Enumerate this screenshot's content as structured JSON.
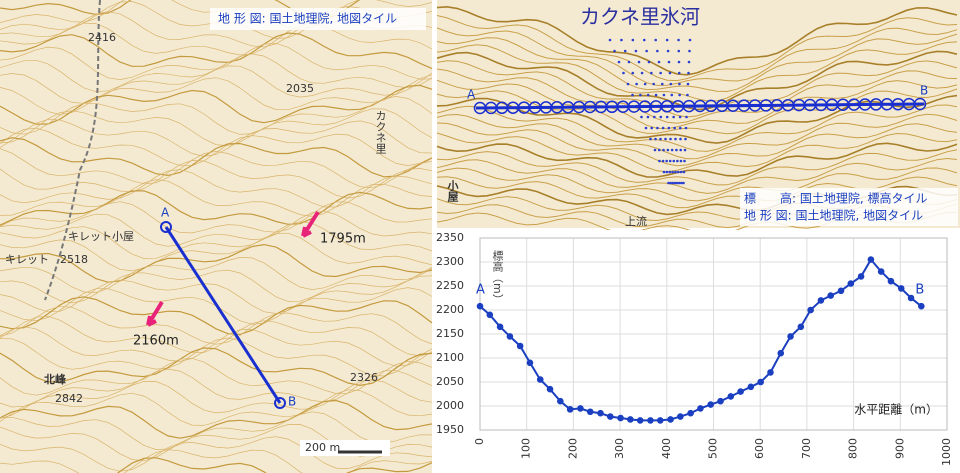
{
  "left_map": {
    "credit": "地 形 図: 国土地理院, 地図タイル",
    "point_a": "A",
    "point_b": "B",
    "labels": [
      "キレット小屋",
      "キレット",
      "2518",
      "2416",
      "2035",
      "カクネ里",
      "1795m",
      "2160m",
      "北峰",
      "2842",
      "2326"
    ],
    "scale": "200 m"
  },
  "profile_map": {
    "title": "カクネ里氷河",
    "point_a": "A",
    "point_b": "B",
    "credit_elevation": "標　　高: 国土地理院, 標高タイル",
    "credit_map": "地 形 図: 国土地理院, 地図タイル",
    "labels": [
      "上流",
      "小屋"
    ]
  },
  "chart_data": {
    "type": "line",
    "ylabel": "標高（m）",
    "xlabel": "水平距離（m）",
    "annotations": [
      "A",
      "B"
    ],
    "color": "#1a3fc0",
    "xlim": [
      0,
      1000
    ],
    "xticks": [
      0,
      100,
      200,
      300,
      400,
      500,
      600,
      700,
      800,
      900,
      1000
    ],
    "ylim": [
      1950,
      2350
    ],
    "yticks": [
      1950,
      2000,
      2050,
      2100,
      2150,
      2200,
      2250,
      2300,
      2350
    ],
    "grid": true,
    "x": [
      0,
      21,
      43,
      64,
      86,
      107,
      129,
      150,
      172,
      193,
      215,
      236,
      258,
      279,
      301,
      322,
      343,
      365,
      386,
      408,
      429,
      451,
      472,
      494,
      515,
      537,
      558,
      580,
      601,
      622,
      644,
      665,
      687,
      708,
      730,
      751,
      773,
      794,
      816,
      837,
      859,
      880,
      902,
      923,
      945
    ],
    "values": [
      2208,
      2190,
      2165,
      2145,
      2125,
      2090,
      2055,
      2035,
      2010,
      1993,
      1995,
      1988,
      1985,
      1978,
      1975,
      1972,
      1970,
      1970,
      1970,
      1972,
      1978,
      1985,
      1995,
      2003,
      2010,
      2020,
      2030,
      2040,
      2050,
      2070,
      2110,
      2145,
      2165,
      2200,
      2220,
      2230,
      2240,
      2255,
      2270,
      2305,
      2280,
      2260,
      2245,
      2225,
      2208
    ]
  }
}
